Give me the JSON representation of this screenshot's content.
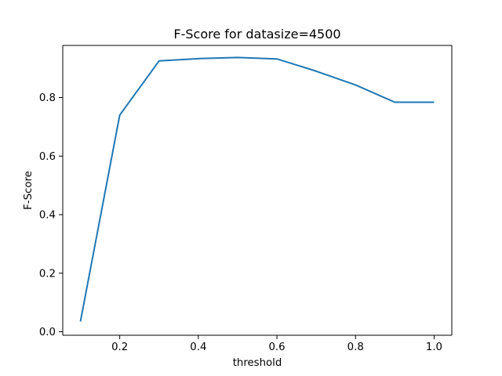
{
  "chart_data": {
    "type": "line",
    "title": "F-Score for datasize=4500",
    "xlabel": "threshold",
    "ylabel": "F-Score",
    "xlim": [
      0.055,
      1.045
    ],
    "ylim": [
      -0.012,
      0.978
    ],
    "xticks": [
      0.2,
      0.4,
      0.6,
      0.8,
      1.0
    ],
    "xtick_labels": [
      "0.2",
      "0.4",
      "0.6",
      "0.8",
      "1.0"
    ],
    "yticks": [
      0.0,
      0.2,
      0.4,
      0.6,
      0.8
    ],
    "ytick_labels": [
      "0.0",
      "0.2",
      "0.4",
      "0.6",
      "0.8"
    ],
    "grid": false,
    "series": [
      {
        "color": "#1f77b4",
        "x": [
          0.1,
          0.2,
          0.3,
          0.4,
          0.5,
          0.6,
          0.7,
          0.8,
          0.9,
          1.0
        ],
        "y": [
          0.035,
          0.74,
          0.925,
          0.933,
          0.937,
          0.932,
          0.89,
          0.843,
          0.784,
          0.784
        ]
      }
    ]
  }
}
